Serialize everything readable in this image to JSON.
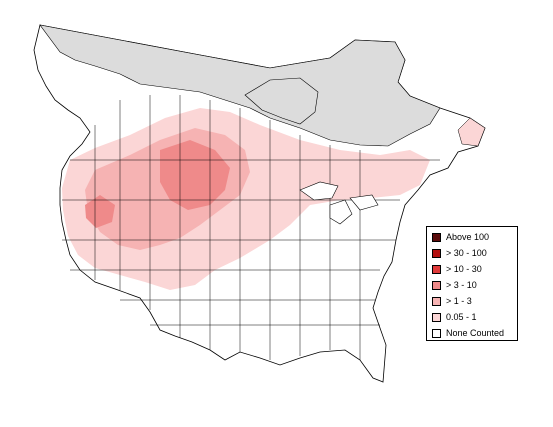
{
  "map": {
    "palette": {
      "no_data": "#dcdcdc",
      "abundance_low": "#fbd6d6",
      "abundance_1_3": "#f6b3b3",
      "abundance_3_10": "#ef8a8a",
      "abundance_10_30": "#e03a3a",
      "abundance_30_100": "#b30f0f",
      "abundance_above_100": "#5a0b0b",
      "none": "#ffffff",
      "border": "#000000"
    }
  },
  "legend": {
    "items": [
      {
        "label": "Above 100",
        "color": "#5a0b0b"
      },
      {
        "label": "> 30 - 100",
        "color": "#b30f0f"
      },
      {
        "label": "> 10 - 30",
        "color": "#e03a3a"
      },
      {
        "label": "> 3 - 10",
        "color": "#ef8a8a"
      },
      {
        "label": "> 1 - 3",
        "color": "#f6b3b3"
      },
      {
        "label": "0.05 - 1",
        "color": "#fbd6d6"
      },
      {
        "label": "None Counted",
        "color": "#ffffff"
      }
    ]
  }
}
